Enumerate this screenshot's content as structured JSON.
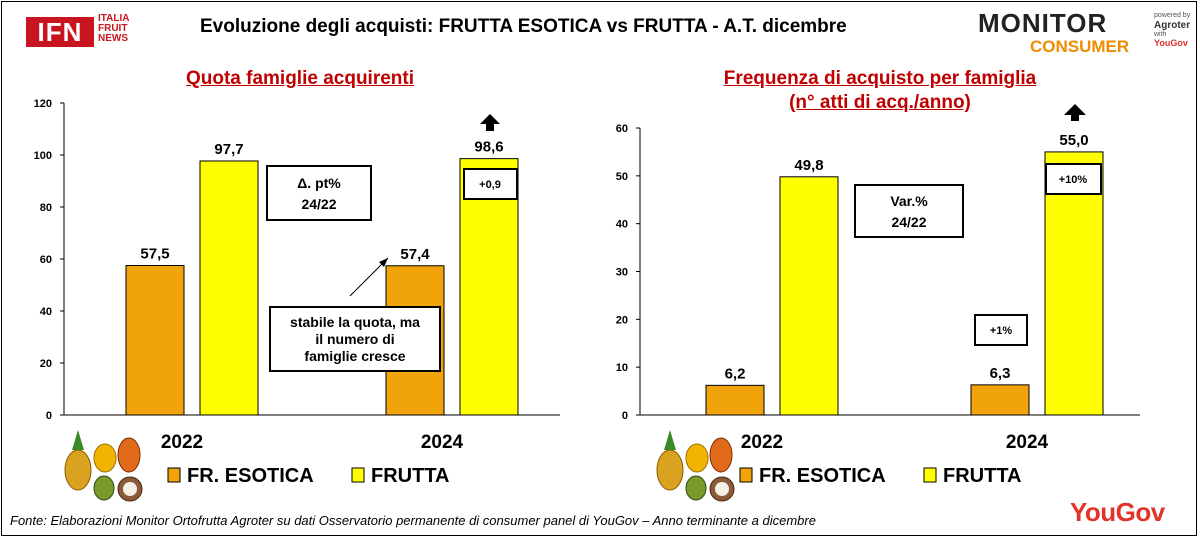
{
  "header": {
    "title": "Evoluzione degli acquisti: FRUTTA ESOTICA vs FRUTTA  - A.T. dicembre",
    "logo_ifn": "IFN",
    "logo_ifn_side": [
      "ITALIA",
      "FRUIT",
      "NEWS"
    ],
    "logo_monitor": "MONITOR",
    "logo_consumer": "CONSUMER",
    "powered_by": "powered by",
    "powered_brand": "Agroter",
    "powered_with": "with",
    "powered_partner": "YouGov"
  },
  "footer": {
    "source": "Fonte: Elaborazioni Monitor Ortofrutta Agroter su dati Osservatorio permanente di consumer panel di YouGov  – Anno terminante a dicembre",
    "brand": "YouGov"
  },
  "colors": {
    "esotica": "#f0a30a",
    "frutta": "#ffff00",
    "title_red": "#c00000"
  },
  "chart_data": [
    {
      "type": "bar",
      "title": "Quota famiglie acquirenti",
      "categories": [
        "2022",
        "2024"
      ],
      "ylim": [
        0,
        120
      ],
      "yticks": [
        "0",
        "20",
        "40",
        "60",
        "80",
        "100",
        "120"
      ],
      "series": [
        {
          "name": "FR. ESOTICA",
          "values": [
            57.5,
            57.4
          ],
          "labels": [
            "57,5",
            "57,4"
          ]
        },
        {
          "name": "FRUTTA",
          "values": [
            97.7,
            98.6
          ],
          "labels": [
            "97,7",
            "98,6"
          ]
        }
      ],
      "annotations": {
        "delta_box": [
          "Δ. pt%",
          "24/22"
        ],
        "small_box": "+0,9",
        "note": [
          "stabile la quota, ma",
          "il numero di",
          "famiglie cresce"
        ]
      },
      "legend": [
        "FR. ESOTICA",
        "FRUTTA"
      ],
      "legend_position": "bottom",
      "grid": false
    },
    {
      "type": "bar",
      "title": "Frequenza di acquisto per famiglia",
      "subtitle": "(n° atti di acq./anno)",
      "categories": [
        "2022",
        "2024"
      ],
      "ylim": [
        0,
        60
      ],
      "yticks": [
        "0",
        "10",
        "20",
        "30",
        "40",
        "50",
        "60"
      ],
      "series": [
        {
          "name": "FR. ESOTICA",
          "values": [
            6.2,
            6.3
          ],
          "labels": [
            "6,2",
            "6,3"
          ]
        },
        {
          "name": "FRUTTA",
          "values": [
            49.8,
            55.0
          ],
          "labels": [
            "49,8",
            "55,0"
          ]
        }
      ],
      "annotations": {
        "delta_box": [
          "Var.%",
          "24/22"
        ],
        "small_box": "+10%",
        "small_box_esotica": "+1%"
      },
      "legend": [
        "FR. ESOTICA",
        "FRUTTA"
      ],
      "legend_position": "bottom",
      "grid": false
    }
  ]
}
